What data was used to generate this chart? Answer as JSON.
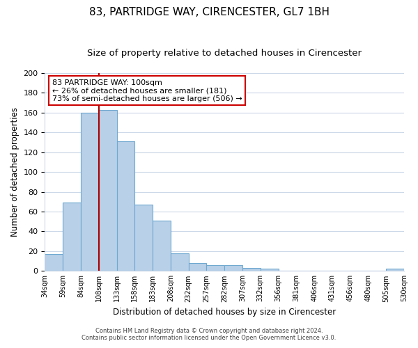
{
  "title": "83, PARTRIDGE WAY, CIRENCESTER, GL7 1BH",
  "subtitle": "Size of property relative to detached houses in Cirencester",
  "bar_values": [
    17,
    69,
    160,
    163,
    131,
    67,
    51,
    18,
    8,
    6,
    6,
    3,
    2,
    0,
    0,
    0,
    0,
    0,
    0,
    2
  ],
  "x_labels": [
    "34sqm",
    "59sqm",
    "84sqm",
    "108sqm",
    "133sqm",
    "158sqm",
    "183sqm",
    "208sqm",
    "232sqm",
    "257sqm",
    "282sqm",
    "307sqm",
    "332sqm",
    "356sqm",
    "381sqm",
    "406sqm",
    "431sqm",
    "456sqm",
    "480sqm",
    "505sqm",
    "530sqm"
  ],
  "bar_color": "#b8d0e8",
  "bar_edge_color": "#6fa8d0",
  "highlight_line_color": "#aa0000",
  "ylabel": "Number of detached properties",
  "xlabel": "Distribution of detached houses by size in Cirencester",
  "ylim": [
    0,
    200
  ],
  "yticks": [
    0,
    20,
    40,
    60,
    80,
    100,
    120,
    140,
    160,
    180,
    200
  ],
  "annotation_title": "83 PARTRIDGE WAY: 100sqm",
  "annotation_line1": "← 26% of detached houses are smaller (181)",
  "annotation_line2": "73% of semi-detached houses are larger (506) →",
  "annotation_box_color": "#ffffff",
  "annotation_box_edge_color": "#cc0000",
  "footer_line1": "Contains HM Land Registry data © Crown copyright and database right 2024.",
  "footer_line2": "Contains public sector information licensed under the Open Government Licence v3.0.",
  "background_color": "#ffffff",
  "grid_color": "#ccd8e8",
  "title_fontsize": 11,
  "subtitle_fontsize": 9.5
}
